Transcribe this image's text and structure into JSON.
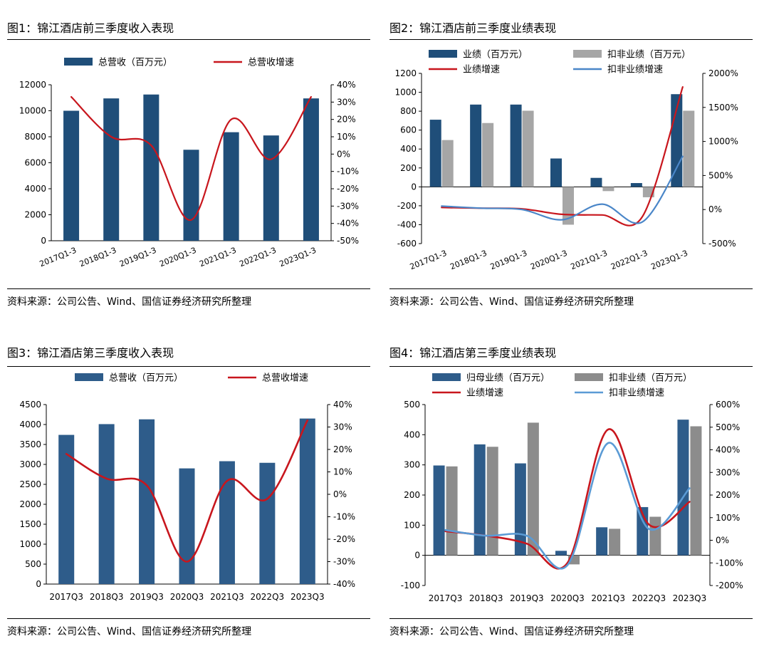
{
  "chart_data": [
    {
      "id": "fig1",
      "type": "bar",
      "title": "图1：锦江酒店前三季度收入表现",
      "source": "资料来源：公司公告、Wind、国信证券经济研究所整理",
      "categories": [
        "2017Q1-3",
        "2018Q1-3",
        "2019Q1-3",
        "2020Q1-3",
        "2021Q1-3",
        "2022Q1-3",
        "2023Q1-3"
      ],
      "left_axis": {
        "min": 0,
        "max": 12000,
        "step": 2000,
        "tick_labels": [
          "0",
          "2000",
          "4000",
          "6000",
          "8000",
          "10000",
          "12000"
        ]
      },
      "right_axis": {
        "min": -50,
        "max": 40,
        "step": 10,
        "tick_labels": [
          "-50%",
          "-40%",
          "-30%",
          "-20%",
          "-10%",
          "0%",
          "10%",
          "20%",
          "30%",
          "40%"
        ]
      },
      "bar_series": [
        {
          "name": "总营收（百万元）",
          "color": "#1f4e79",
          "values": [
            10000,
            10950,
            11250,
            7000,
            8350,
            8100,
            10950
          ]
        }
      ],
      "line_series": [
        {
          "name": "总营收增速",
          "color": "#c8161d",
          "values": [
            33,
            10,
            5,
            -38,
            20,
            -3,
            33
          ]
        }
      ],
      "legend_order": [
        "bar:0",
        "line:0"
      ],
      "category_label_rotation": "rotated"
    },
    {
      "id": "fig2",
      "type": "bar",
      "title": "图2：锦江酒店前三季度业绩表现",
      "source": "资料来源：公司公告、Wind、国信证券经济研究所整理",
      "categories": [
        "2017Q1-3",
        "2018Q1-3",
        "2019Q1-3",
        "2020Q1-3",
        "2021Q1-3",
        "2022Q1-3",
        "2023Q1-3"
      ],
      "left_axis": {
        "min": -600,
        "max": 1200,
        "step": 200,
        "tick_labels": [
          "-600",
          "-400",
          "-200",
          "0",
          "200",
          "400",
          "600",
          "800",
          "1000",
          "1200"
        ]
      },
      "right_axis": {
        "min": -500,
        "max": 2000,
        "step": 500,
        "tick_labels": [
          "-500%",
          "0%",
          "500%",
          "1000%",
          "1500%",
          "2000%"
        ]
      },
      "bar_series": [
        {
          "name": "业绩（百万元）",
          "color": "#1f4e79",
          "values": [
            710,
            870,
            870,
            300,
            95,
            40,
            980
          ]
        },
        {
          "name": "扣非业绩（百万元）",
          "color": "#a6a6a6",
          "values": [
            495,
            675,
            805,
            -400,
            -45,
            -110,
            805
          ]
        }
      ],
      "line_series": [
        {
          "name": "业绩增速",
          "color": "#c8161d",
          "values": [
            30,
            20,
            10,
            -70,
            -80,
            -100,
            1800
          ]
        },
        {
          "name": "扣非业绩增速",
          "color": "#4a86c8",
          "values": [
            50,
            20,
            0,
            -150,
            80,
            -180,
            780
          ]
        }
      ],
      "legend_order": [
        "bar:0",
        "bar:1",
        "line:0",
        "line:1"
      ],
      "category_label_rotation": "rotated"
    },
    {
      "id": "fig3",
      "type": "bar",
      "title": "图3：锦江酒店第三季度收入表现",
      "source": "资料来源：公司公告、Wind、国信证券经济研究所整理",
      "categories": [
        "2017Q3",
        "2018Q3",
        "2019Q3",
        "2020Q3",
        "2021Q3",
        "2022Q3",
        "2023Q3"
      ],
      "left_axis": {
        "min": 0,
        "max": 4500,
        "step": 500,
        "tick_labels": [
          "0",
          "500",
          "1000",
          "1500",
          "2000",
          "2500",
          "3000",
          "3500",
          "4000",
          "4500"
        ]
      },
      "right_axis": {
        "min": -40,
        "max": 40,
        "step": 10,
        "tick_labels": [
          "-40%",
          "-30%",
          "-20%",
          "-10%",
          "0%",
          "10%",
          "20%",
          "30%",
          "40%"
        ]
      },
      "bar_series": [
        {
          "name": "总营收（百万元）",
          "color": "#2e5c8a",
          "values": [
            3740,
            4010,
            4130,
            2900,
            3080,
            3040,
            4150
          ]
        }
      ],
      "line_series": [
        {
          "name": "总营收增速",
          "color": "#c8161d",
          "values": [
            18,
            7,
            4,
            -30,
            6,
            -2,
            33
          ]
        }
      ],
      "legend_order": [
        "bar:0",
        "line:0"
      ],
      "category_label_rotation": "horizontal"
    },
    {
      "id": "fig4",
      "type": "bar",
      "title": "图4：锦江酒店第三季度业绩表现",
      "source": "资料来源：公司公告、Wind、国信证券经济研究所整理",
      "categories": [
        "2017Q3",
        "2018Q3",
        "2019Q3",
        "2020Q3",
        "2021Q3",
        "2022Q3",
        "2023Q3"
      ],
      "left_axis": {
        "min": -100,
        "max": 500,
        "step": 100,
        "tick_labels": [
          "-100",
          "0",
          "100",
          "200",
          "300",
          "400",
          "500"
        ]
      },
      "right_axis": {
        "min": -200,
        "max": 600,
        "step": 100,
        "tick_labels": [
          "-200%",
          "-100%",
          "0%",
          "100%",
          "200%",
          "300%",
          "400%",
          "500%",
          "600%"
        ]
      },
      "bar_series": [
        {
          "name": "归母业绩（百万元）",
          "color": "#2e5c8a",
          "values": [
            298,
            368,
            305,
            15,
            93,
            160,
            450
          ]
        },
        {
          "name": "扣非业绩（百万元）",
          "color": "#8c8c8c",
          "values": [
            295,
            360,
            440,
            -30,
            88,
            128,
            428
          ]
        }
      ],
      "line_series": [
        {
          "name": "业绩增速",
          "color": "#c8161d",
          "values": [
            40,
            20,
            -15,
            -100,
            490,
            70,
            170
          ]
        },
        {
          "name": "扣非业绩增速",
          "color": "#5b9bd5",
          "values": [
            45,
            20,
            20,
            -110,
            430,
            50,
            230
          ]
        }
      ],
      "legend_order": [
        "bar:0",
        "bar:1",
        "line:0",
        "line:1"
      ],
      "category_label_rotation": "horizontal"
    }
  ]
}
